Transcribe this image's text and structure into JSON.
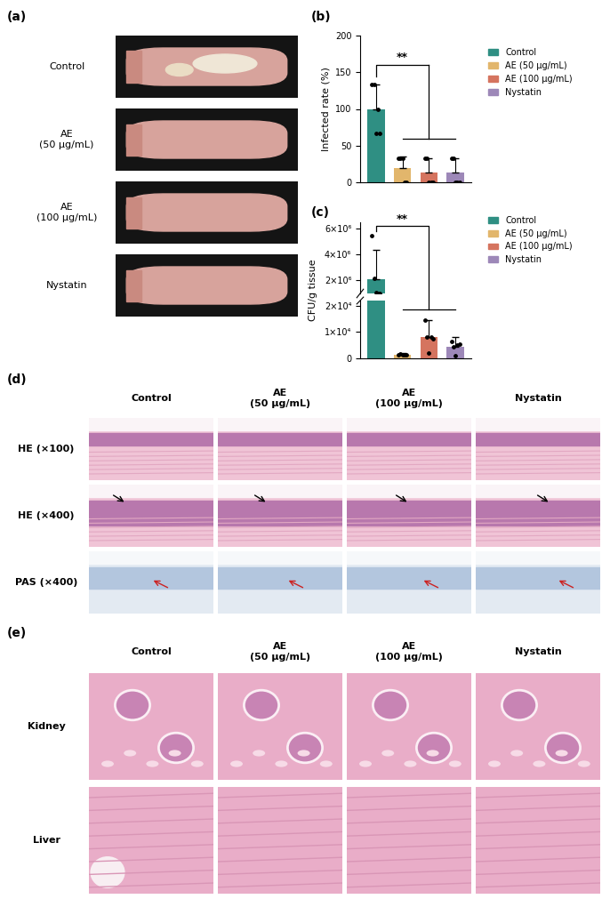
{
  "panels": {
    "a": {
      "label": "(a)",
      "rows": [
        "Control",
        "AE\n(50 μg/mL)",
        "AE\n(100 μg/mL)",
        "Nystatin"
      ]
    },
    "d": {
      "label": "(d)",
      "columns": [
        "Control",
        "AE\n(50 μg/mL)",
        "AE\n(100 μg/mL)",
        "Nystatin"
      ],
      "rows": [
        "HE (×100)",
        "HE (×400)",
        "PAS (×400)"
      ]
    },
    "e": {
      "label": "(e)",
      "columns": [
        "Control",
        "AE\n(50 μg/mL)",
        "AE\n(100 μg/mL)",
        "Nystatin"
      ],
      "rows": [
        "Kidney",
        "Liver"
      ]
    }
  },
  "chart_data": [
    {
      "panel": "(b)",
      "type": "bar",
      "categories": [
        "Control",
        "AE (50 μg/mL)",
        "AE (100 μg/mL)",
        "Nystatin"
      ],
      "values": [
        100,
        20,
        13,
        13
      ],
      "errors": [
        33,
        15,
        20,
        20
      ],
      "points": [
        [
          133,
          133,
          67,
          100,
          67
        ],
        [
          33,
          33,
          33,
          0,
          0
        ],
        [
          33,
          33,
          0,
          0,
          0
        ],
        [
          33,
          33,
          0,
          0,
          0
        ]
      ],
      "colors": [
        "#2f8f83",
        "#e2b66c",
        "#d5745f",
        "#9d88b8"
      ],
      "ylabel": "Infected rate (%)",
      "ylim": [
        0,
        200
      ],
      "yticks": [
        0,
        50,
        100,
        150,
        200
      ],
      "tick_labels": "y",
      "legend": "center left",
      "annotation": "**"
    },
    {
      "panel": "(c)",
      "type": "bar",
      "categories": [
        "Control",
        "AE (50 μg/mL)",
        "AE (100 μg/mL)",
        "Nystatin"
      ],
      "values": [
        2100000,
        1500,
        8000,
        4500
      ],
      "errors": [
        2300000,
        600,
        6500,
        3500
      ],
      "points": [
        [
          5500000,
          2200000,
          1100000,
          1000000,
          1000000
        ],
        [
          1500,
          1600,
          1400,
          1500,
          1500
        ],
        [
          14500,
          8000,
          2000,
          8000,
          7500
        ],
        [
          6500,
          4500,
          1000,
          5000,
          5500
        ]
      ],
      "colors": [
        "#2f8f83",
        "#e2b66c",
        "#d5745f",
        "#9d88b8"
      ],
      "ylabel": "CFU/g tissue",
      "ylim": [
        0,
        6500000
      ],
      "break": [
        22000,
        1000000
      ],
      "yticks": [
        0,
        {
          "value": 10000,
          "label": "1×10⁴"
        },
        {
          "value": 20000,
          "label": "2×10⁴"
        },
        {
          "value": 2000000,
          "label": "2×10⁶"
        },
        {
          "value": 4000000,
          "label": "4×10⁶"
        },
        {
          "value": 6000000,
          "label": "6×10⁶"
        }
      ],
      "tick_labels": "y",
      "legend": "center left",
      "annotation": "**"
    }
  ]
}
